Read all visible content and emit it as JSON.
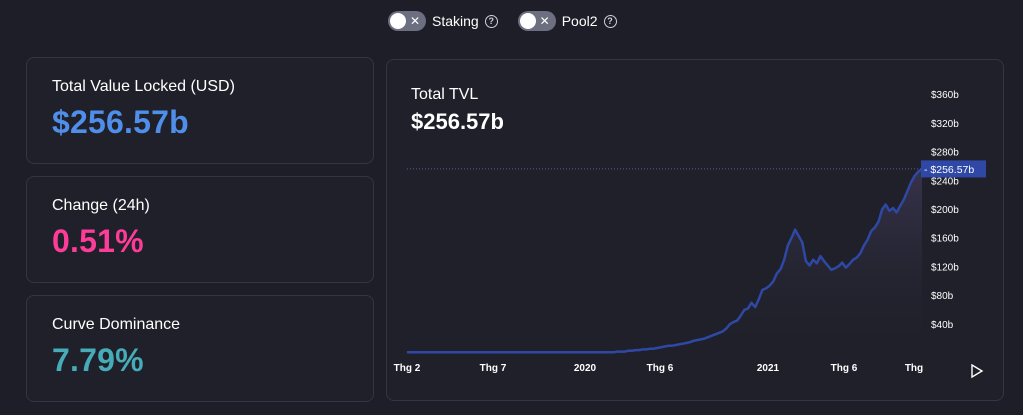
{
  "toggles": [
    {
      "label": "Staking",
      "state_icon": "x-icon",
      "enabled": false
    },
    {
      "label": "Pool2",
      "state_icon": "x-icon",
      "enabled": false
    }
  ],
  "cards": {
    "tvl": {
      "label": "Total Value Locked (USD)",
      "value": "$256.57b",
      "color": "#4f8fea"
    },
    "change": {
      "label": "Change (24h)",
      "value": "0.51%",
      "color": "#fd3c99"
    },
    "dominance": {
      "label": "Curve Dominance",
      "value": "7.79%",
      "color": "#46acb7"
    }
  },
  "chart": {
    "title": "Total TVL",
    "value": "$256.57b",
    "current_label": "$256.57b",
    "play_icon": "play-icon"
  },
  "chart_data": {
    "type": "area",
    "y_ticks": [
      "$360b",
      "$320b",
      "$280b",
      "$240b",
      "$200b",
      "$160b",
      "$120b",
      "$80b",
      "$40b"
    ],
    "y_tick_values": [
      360,
      320,
      280,
      240,
      200,
      160,
      120,
      80,
      40
    ],
    "x_ticks": [
      "Thg 2",
      "Thg 7",
      "2020",
      "Thg 6",
      "2021",
      "Thg 6",
      "Thg"
    ],
    "ylim": [
      0,
      380
    ],
    "current_value": 256.57,
    "series": [
      {
        "values": [
          1,
          1,
          1,
          1,
          1,
          1,
          1,
          1,
          1,
          1,
          1,
          1,
          1,
          1,
          1,
          1,
          1,
          1,
          1,
          1,
          1,
          1,
          1,
          1,
          1,
          1,
          1,
          1,
          1,
          1,
          1,
          1,
          1,
          1,
          1,
          1,
          1,
          1,
          1,
          1,
          1,
          1,
          1,
          1,
          1,
          1,
          1,
          1,
          1,
          1,
          1,
          1,
          1,
          1,
          1,
          1,
          1,
          1,
          2,
          2,
          2,
          3,
          3,
          4,
          4,
          5,
          5,
          6,
          6,
          7,
          8,
          9,
          10,
          10,
          11,
          12,
          13,
          14,
          15,
          17,
          18,
          19,
          20,
          22,
          24,
          26,
          28,
          30,
          34,
          40,
          43,
          45,
          52,
          60,
          62,
          70,
          64,
          75,
          88,
          90,
          94,
          100,
          111,
          117,
          130,
          150,
          160,
          172,
          163,
          154,
          128,
          122,
          130,
          125,
          135,
          128,
          122,
          116,
          118,
          121,
          126,
          119,
          124,
          130,
          133,
          139,
          150,
          158,
          170,
          175,
          183,
          200,
          207,
          198,
          202,
          196,
          205,
          214,
          226,
          238,
          247,
          253,
          256.57
        ]
      }
    ]
  },
  "colors": {
    "background": "#1d1e28",
    "card": "#1f2029",
    "card_border": "#34363f",
    "line": "#2f48a6",
    "label_bg": "#2f48a6",
    "axis_text": "#ffffff"
  }
}
